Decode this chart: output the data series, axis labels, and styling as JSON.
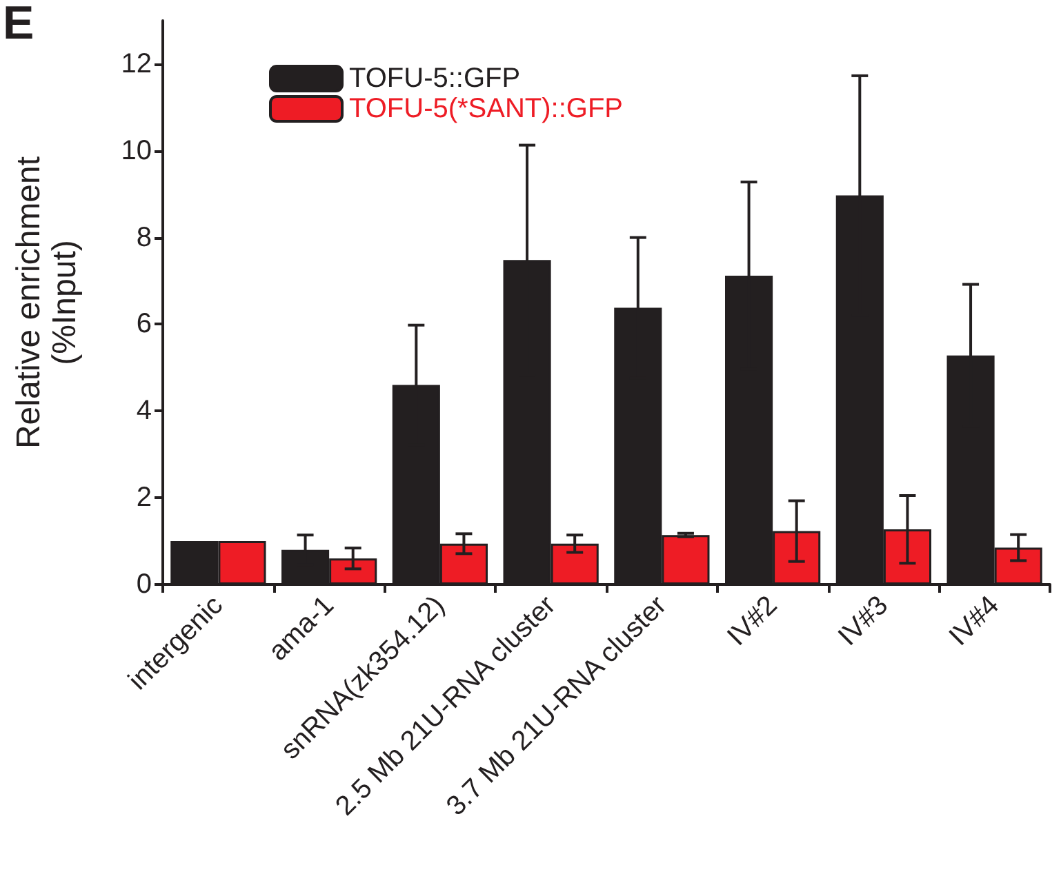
{
  "chart_data": {
    "type": "bar",
    "ylabel": "Relative enrichment\n(%Input)",
    "annotations": [
      "E"
    ],
    "categories": [
      "intergenic",
      "ama-1",
      "snRNA(zk354.12)",
      "2.5 Mb 21U-RNA cluster",
      "3.7 Mb 21U-RNA cluster",
      "IV#2",
      "IV#3",
      "IV#4"
    ],
    "series": [
      {
        "name": "TOFU-5::GFP",
        "color": "#231f20",
        "values": [
          1.0,
          0.8,
          4.6,
          7.48,
          6.38,
          7.12,
          8.97,
          5.28
        ],
        "errors": [
          null,
          0.34,
          1.38,
          2.65,
          1.62,
          2.16,
          2.76,
          1.64
        ]
      },
      {
        "name": "TOFU-5(*SANT)::GFP",
        "color": "#ee1c25",
        "values": [
          1.0,
          0.6,
          0.94,
          0.94,
          1.14,
          1.23,
          1.27,
          0.85
        ],
        "errors": [
          null,
          0.24,
          0.23,
          0.2,
          0.04,
          0.7,
          0.78,
          0.3
        ]
      }
    ],
    "ylim": [
      0,
      13
    ],
    "yticks": [
      0,
      2,
      4,
      6,
      8,
      10,
      12
    ],
    "grid": false,
    "legend": "top left"
  }
}
